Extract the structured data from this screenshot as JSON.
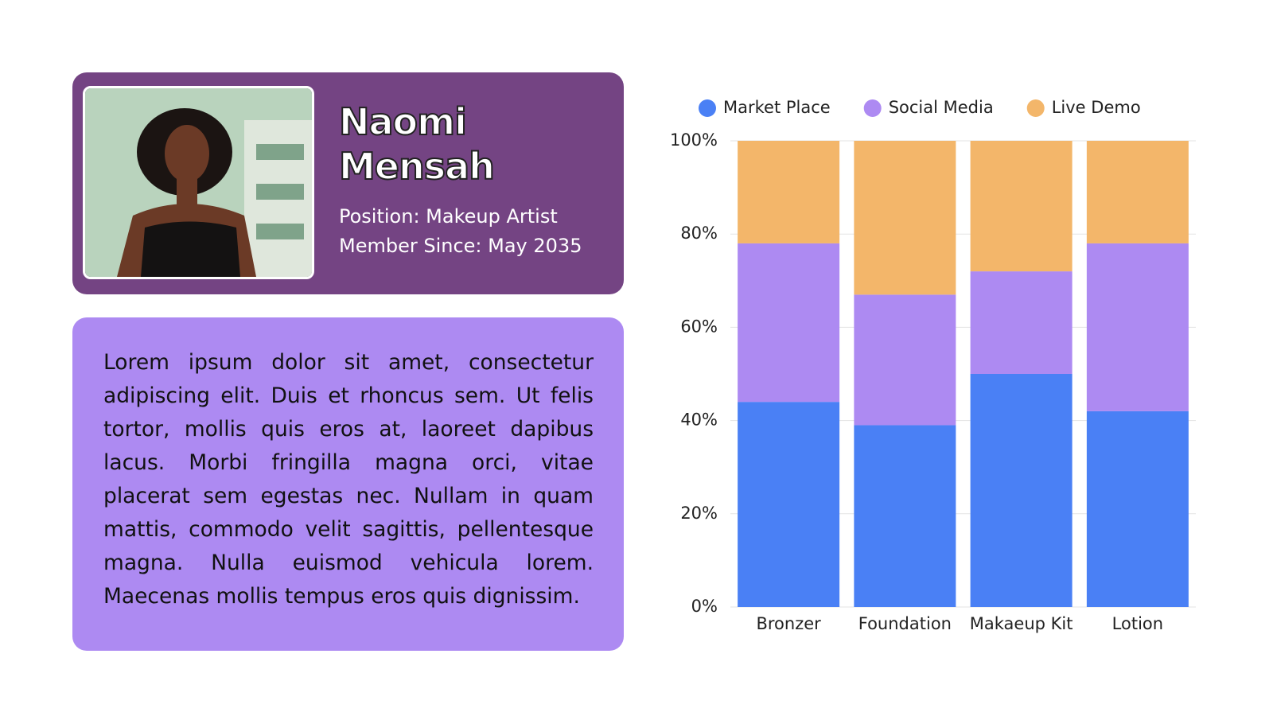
{
  "profile": {
    "name": "Naomi Mensah",
    "position": "Position: Makeup Artist",
    "member_since": "Member Since: May 2035"
  },
  "description": "Lorem ipsum dolor sit amet, consectetur adipiscing elit. Duis et rhoncus sem. Ut felis tortor, mollis quis eros at, laoreet dapibus lacus. Morbi fringilla magna orci, vitae placerat sem egestas nec. Nullam in quam mattis, commodo velit sagittis, pellentesque magna. Nulla euismod vehicula lorem. Maecenas mollis tempus eros quis dignissim.",
  "chart_data": {
    "type": "stacked_bar",
    "categories": [
      "Bronzer",
      "Foundation",
      "Makaeup Kit",
      "Lotion"
    ],
    "series": [
      {
        "name": "Market Place",
        "color": "#4a80f5",
        "values": [
          44,
          39,
          50,
          42
        ]
      },
      {
        "name": "Social Media",
        "color": "#ad8af2",
        "values": [
          34,
          28,
          22,
          36
        ]
      },
      {
        "name": "Live Demo",
        "color": "#f3b66a",
        "values": [
          22,
          33,
          28,
          22
        ]
      }
    ],
    "ylim": [
      0,
      100
    ],
    "yticks": [
      {
        "value": 0,
        "label": "0%"
      },
      {
        "value": 20,
        "label": "20%"
      },
      {
        "value": 40,
        "label": "40%"
      },
      {
        "value": 60,
        "label": "60%"
      },
      {
        "value": 80,
        "label": "80%"
      },
      {
        "value": 100,
        "label": "100%"
      }
    ],
    "grid": true,
    "legend": "top"
  }
}
